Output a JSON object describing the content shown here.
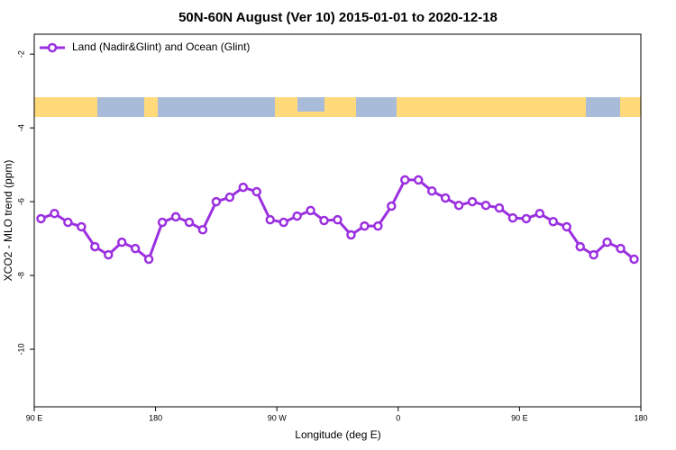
{
  "chart_data": {
    "type": "line",
    "title": "50N-60N August (Ver 10)   2015-01-01 to 2020-12-18",
    "xlabel": "Longitude (deg E)",
    "ylabel": "XCO2 - MLO trend (ppm)",
    "x": [
      95,
      105,
      115,
      125,
      135,
      145,
      155,
      165,
      175,
      185,
      195,
      205,
      215,
      225,
      235,
      245,
      255,
      265,
      275,
      285,
      295,
      305,
      315,
      325,
      335,
      345,
      355,
      365,
      375,
      385,
      395,
      405,
      415,
      425,
      435,
      445,
      455,
      465,
      475,
      485,
      495,
      505,
      515,
      525,
      535
    ],
    "series": [
      {
        "name": "Land (Nadir&Glint) and Ocean (Glint)",
        "color": "#9b30e0",
        "values": [
          -6.46,
          -6.32,
          -6.56,
          -6.68,
          -7.22,
          -7.44,
          -7.1,
          -7.27,
          -7.56,
          -6.56,
          -6.41,
          -6.56,
          -6.76,
          -6.0,
          -5.88,
          -5.61,
          -5.73,
          -6.49,
          -6.56,
          -6.39,
          -6.24,
          -6.51,
          -6.49,
          -6.9,
          -6.66,
          -6.66,
          -6.12,
          -5.41,
          -5.41,
          -5.71,
          -5.9,
          -6.1,
          -6.0,
          -6.1,
          -6.17,
          -6.44,
          -6.46,
          -6.32,
          -6.54,
          -6.68,
          -7.22,
          -7.44,
          -7.1,
          -7.27,
          -7.56
        ]
      }
    ],
    "xlim": [
      90,
      540
    ],
    "xticks": [
      {
        "value": 90,
        "label": "90 E"
      },
      {
        "value": 180,
        "label": "180"
      },
      {
        "value": 270,
        "label": "90 W"
      },
      {
        "value": 360,
        "label": "0"
      },
      {
        "value": 450,
        "label": "90 E"
      },
      {
        "value": 540,
        "label": "180"
      }
    ],
    "ylim": [
      -11.56,
      -1.46
    ],
    "yticks": [
      -2,
      -4,
      -6,
      -8,
      -10
    ],
    "legend": "top-left"
  }
}
